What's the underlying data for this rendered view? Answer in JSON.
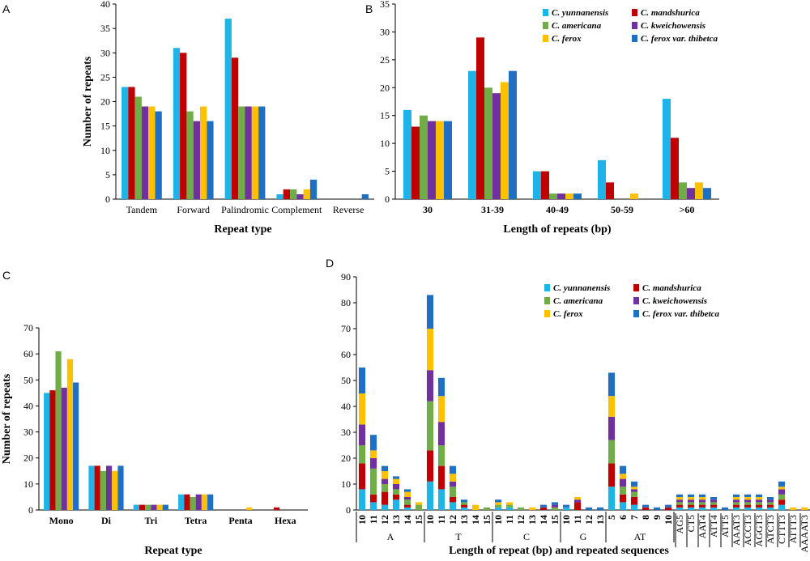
{
  "colors": [
    "#1fb4e8",
    "#c00000",
    "#70ad47",
    "#7030a0",
    "#ffc000",
    "#1f6fc5"
  ],
  "chart_data": [
    {
      "panel": "A",
      "type": "bar",
      "ylabel": "Number of repeats",
      "xlabel": "Repeat type",
      "ylim": [
        0,
        40
      ],
      "ytick_step": 5,
      "categories": [
        "Tandem",
        "Forward",
        "Palindromic",
        "Complement",
        "Reverse"
      ],
      "series": [
        {
          "name": "C. yunnanensis",
          "values": [
            23,
            31,
            37,
            1,
            0
          ]
        },
        {
          "name": "C. mandshurica",
          "values": [
            23,
            30,
            29,
            2,
            0
          ]
        },
        {
          "name": "C. americana",
          "values": [
            21,
            18,
            19,
            2,
            0
          ]
        },
        {
          "name": "C. kweichowensis",
          "values": [
            19,
            16,
            19,
            1,
            0
          ]
        },
        {
          "name": "C. ferox",
          "values": [
            19,
            19,
            19,
            2,
            0
          ]
        },
        {
          "name": "C. ferox var. thibetca",
          "values": [
            18,
            16,
            19,
            4,
            1
          ]
        }
      ]
    },
    {
      "panel": "B",
      "type": "bar",
      "ylabel": "",
      "xlabel": "Length of repeats (bp)",
      "ylim": [
        0,
        35
      ],
      "ytick_step": 5,
      "categories": [
        "30",
        "31-39",
        "40-49",
        "50-59",
        ">60"
      ],
      "legend": [
        "C. yunnanensis",
        "C. mandshurica",
        "C. americana",
        "C. kweichowensis",
        "C. ferox",
        "C. ferox var. thibetca"
      ],
      "series": [
        {
          "name": "C. yunnanensis",
          "values": [
            16,
            23,
            5,
            7,
            18
          ]
        },
        {
          "name": "C. mandshurica",
          "values": [
            13,
            29,
            5,
            3,
            11
          ]
        },
        {
          "name": "C. americana",
          "values": [
            15,
            20,
            1,
            0,
            3
          ]
        },
        {
          "name": "C. kweichowensis",
          "values": [
            14,
            19,
            1,
            0,
            2
          ]
        },
        {
          "name": "C. ferox",
          "values": [
            14,
            21,
            1,
            1,
            3
          ]
        },
        {
          "name": "C. ferox var. thibetca",
          "values": [
            14,
            23,
            1,
            0,
            2
          ]
        }
      ]
    },
    {
      "panel": "C",
      "type": "bar",
      "ylabel": "Number of repeats",
      "xlabel": "Repeat type",
      "ylim": [
        0,
        70
      ],
      "ytick_step": 10,
      "categories": [
        "Mono",
        "Di",
        "Tri",
        "Tetra",
        "Penta",
        "Hexa"
      ],
      "series": [
        {
          "name": "C. yunnanensis",
          "values": [
            45,
            17,
            2,
            6,
            0,
            0
          ]
        },
        {
          "name": "C. mandshurica",
          "values": [
            46,
            17,
            2,
            6,
            0,
            1
          ]
        },
        {
          "name": "C. americana",
          "values": [
            61,
            15,
            2,
            5,
            0,
            0
          ]
        },
        {
          "name": "C. kweichowensis",
          "values": [
            47,
            17,
            2,
            6,
            0,
            0
          ]
        },
        {
          "name": "C. ferox",
          "values": [
            58,
            15,
            2,
            6,
            1,
            0
          ]
        },
        {
          "name": "C. ferox var. thibetca",
          "values": [
            49,
            17,
            2,
            6,
            0,
            0
          ]
        }
      ]
    },
    {
      "panel": "D",
      "type": "bar",
      "stacked": true,
      "ylabel": "",
      "xlabel": "Length of repeat (bp) and repeated sequences",
      "ylim": [
        0,
        90
      ],
      "ytick_step": 10,
      "legend": [
        "C. yunnanensis",
        "C. mandshurica",
        "C. americana",
        "C. kweichowensis",
        "C. ferox",
        "C. ferox var. thibetca"
      ],
      "categories": [
        "10",
        "11",
        "12",
        "13",
        "14",
        "15",
        "10",
        "11",
        "12",
        "13",
        "14",
        "15",
        "10",
        "11",
        "12",
        "13",
        "14",
        "15",
        "10",
        "11",
        "12",
        "13",
        "5",
        "6",
        "7",
        "8",
        "9",
        "10",
        "AG5",
        "CT5",
        "AAT4",
        "ATT4",
        "ATT5",
        "AAAT3",
        "ACCT3",
        "AGGT3",
        "ATCT3",
        "CTTT3",
        "ATTT3",
        "AAAAT3"
      ],
      "groups": [
        {
          "label": "A",
          "count": 6
        },
        {
          "label": "T",
          "count": 6
        },
        {
          "label": "C",
          "count": 6
        },
        {
          "label": "G",
          "count": 4
        },
        {
          "label": "AT",
          "count": 6
        }
      ],
      "series": [
        {
          "name": "C. yunnanensis",
          "values": [
            8,
            3,
            2,
            4,
            1,
            0,
            11,
            8,
            3,
            1,
            0,
            0,
            1,
            1,
            0,
            0,
            0,
            0,
            1,
            0,
            0,
            0,
            9,
            3,
            2,
            0,
            0,
            0,
            1,
            1,
            1,
            1,
            0,
            1,
            1,
            1,
            1,
            2,
            0,
            0
          ]
        },
        {
          "name": "C. mandshurica",
          "values": [
            10,
            3,
            5,
            2,
            1,
            0,
            12,
            9,
            2,
            1,
            0,
            0,
            0,
            0,
            0,
            0,
            1,
            0,
            0,
            3,
            0,
            0,
            9,
            3,
            3,
            1,
            0,
            1,
            1,
            1,
            1,
            1,
            0,
            1,
            1,
            1,
            1,
            2,
            0,
            0
          ]
        },
        {
          "name": "C. americana",
          "values": [
            7,
            10,
            3,
            2,
            2,
            2,
            19,
            8,
            4,
            1,
            0,
            1,
            1,
            1,
            1,
            0,
            0,
            1,
            0,
            0,
            0,
            0,
            9,
            3,
            2,
            0,
            0,
            0,
            1,
            1,
            1,
            1,
            0,
            1,
            1,
            1,
            1,
            2,
            0,
            0
          ]
        },
        {
          "name": "C. kweichowensis",
          "values": [
            8,
            4,
            2,
            2,
            1,
            0,
            12,
            9,
            2,
            0,
            0,
            0,
            0,
            0,
            0,
            0,
            0,
            1,
            0,
            1,
            0,
            0,
            9,
            3,
            1,
            0,
            0,
            0,
            1,
            1,
            1,
            1,
            0,
            1,
            1,
            1,
            1,
            2,
            0,
            0
          ]
        },
        {
          "name": "C. ferox",
          "values": [
            12,
            3,
            3,
            2,
            2,
            1,
            16,
            10,
            3,
            0,
            2,
            0,
            1,
            1,
            0,
            1,
            0,
            0,
            0,
            1,
            0,
            0,
            8,
            2,
            1,
            0,
            0,
            0,
            1,
            1,
            1,
            0,
            0,
            1,
            1,
            1,
            0,
            1,
            1,
            1
          ]
        },
        {
          "name": "C. ferox var. thibetca",
          "values": [
            10,
            6,
            2,
            1,
            1,
            0,
            13,
            7,
            3,
            1,
            0,
            0,
            1,
            0,
            0,
            0,
            1,
            1,
            1,
            0,
            1,
            1,
            9,
            3,
            2,
            1,
            1,
            1,
            1,
            1,
            1,
            1,
            1,
            1,
            1,
            1,
            1,
            2,
            0,
            0
          ]
        }
      ]
    }
  ]
}
